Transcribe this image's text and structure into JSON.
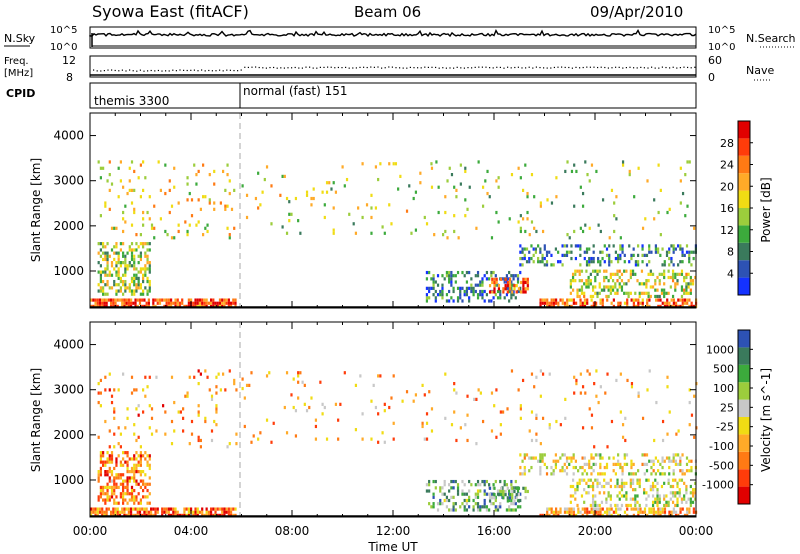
{
  "header": {
    "title": "Syowa East (fitACF)",
    "beam": "Beam 06",
    "date": "09/Apr/2010"
  },
  "nsky_panel": {
    "left_label": "N.Sky",
    "left_ticks": [
      "10^5",
      "10^0"
    ],
    "right_label": "N.Search",
    "right_ticks": [
      "10^5",
      "10^0"
    ]
  },
  "freq_panel": {
    "left_label_1": "Freq.",
    "left_label_2": "[MHz]",
    "left_ticks": [
      "12",
      "8"
    ],
    "right_label": "Nave",
    "right_ticks": [
      "60",
      "0"
    ]
  },
  "cpid_panel": {
    "label": "CPID",
    "segments": [
      {
        "name": "themis 3300",
        "start_hour": 0,
        "end_hour": 6
      },
      {
        "name": "normal (fast) 151",
        "start_hour": 6,
        "end_hour": 24
      }
    ]
  },
  "x_axis": {
    "label": "Time UT",
    "ticks": [
      "00:00",
      "04:00",
      "08:00",
      "12:00",
      "16:00",
      "20:00",
      "00:00"
    ]
  },
  "chart_data": [
    {
      "type": "heatmap",
      "title": "",
      "xlabel": "Time UT",
      "ylabel": "Slant Range [km]",
      "xlim": [
        0,
        24
      ],
      "ylim": [
        180,
        4500
      ],
      "yticks": [
        "1000",
        "2000",
        "3000",
        "4000"
      ],
      "colorbar": {
        "label": "Power [dB]",
        "range": [
          0,
          32
        ],
        "tick_labels": [
          "4",
          "8",
          "12",
          "16",
          "20",
          "24",
          "28"
        ],
        "colors": [
          "#1432ff",
          "#2d52b4",
          "#3a7a5c",
          "#3caa3c",
          "#9ccd3c",
          "#f0dc14",
          "#ffaa28",
          "#ff7a14",
          "#ff3c0a",
          "#e10000"
        ]
      },
      "regions": [
        {
          "t0": 0.0,
          "t1": 5.8,
          "r0": 180,
          "r1": 330,
          "level": 0.82,
          "density": 0.8
        },
        {
          "t0": 0.3,
          "t1": 2.4,
          "r0": 450,
          "r1": 1600,
          "level": 0.45,
          "density": 0.5
        },
        {
          "t0": 0.3,
          "t1": 5.8,
          "r0": 1700,
          "r1": 3400,
          "level": 0.55,
          "density": 0.07
        },
        {
          "t0": 6.0,
          "t1": 13.5,
          "r0": 1800,
          "r1": 3400,
          "level": 0.5,
          "density": 0.035
        },
        {
          "t0": 13.3,
          "t1": 17.0,
          "r0": 300,
          "r1": 1000,
          "level": 0.2,
          "density": 0.4
        },
        {
          "t0": 15.8,
          "t1": 17.3,
          "r0": 500,
          "r1": 800,
          "level": 0.78,
          "density": 0.5
        },
        {
          "t0": 17.0,
          "t1": 24.0,
          "r0": 1100,
          "r1": 1550,
          "level": 0.25,
          "density": 0.3
        },
        {
          "t0": 17.8,
          "t1": 24.0,
          "r0": 180,
          "r1": 350,
          "level": 0.8,
          "density": 0.6
        },
        {
          "t0": 19.0,
          "t1": 24.0,
          "r0": 400,
          "r1": 1000,
          "level": 0.5,
          "density": 0.4
        },
        {
          "t0": 13.5,
          "t1": 24.0,
          "r0": 1700,
          "r1": 3400,
          "level": 0.45,
          "density": 0.04
        }
      ]
    },
    {
      "type": "heatmap",
      "title": "",
      "xlabel": "Time UT",
      "ylabel": "Slant Range [km]",
      "xlim": [
        0,
        24
      ],
      "ylim": [
        180,
        4500
      ],
      "yticks": [
        "1000",
        "2000",
        "3000",
        "4000"
      ],
      "colorbar": {
        "label": "Velocity [m s^-1]",
        "range": [
          -1200,
          1200
        ],
        "tick_labels": [
          "-1000",
          "-500",
          "-100",
          "-25",
          "25",
          "100",
          "500",
          "1000"
        ],
        "colors": [
          "#e10000",
          "#ff3c0a",
          "#ff7a14",
          "#ffaa28",
          "#f0dc14",
          "#c8c8c8",
          "#9ccd3c",
          "#3caa3c",
          "#3a7a5c",
          "#2d52b4"
        ]
      },
      "regions": [
        {
          "t0": 0.0,
          "t1": 5.8,
          "r0": 180,
          "r1": 330,
          "level": 0.22,
          "density": 0.8
        },
        {
          "t0": 0.3,
          "t1": 2.4,
          "r0": 450,
          "r1": 1600,
          "level": 0.28,
          "density": 0.5
        },
        {
          "t0": 0.3,
          "t1": 5.8,
          "r0": 1700,
          "r1": 3400,
          "level": 0.3,
          "density": 0.07
        },
        {
          "t0": 6.0,
          "t1": 13.5,
          "r0": 1800,
          "r1": 3400,
          "level": 0.35,
          "density": 0.035
        },
        {
          "t0": 13.3,
          "t1": 17.0,
          "r0": 300,
          "r1": 1000,
          "level": 0.72,
          "density": 0.4
        },
        {
          "t0": 15.8,
          "t1": 17.3,
          "r0": 500,
          "r1": 800,
          "level": 0.7,
          "density": 0.5
        },
        {
          "t0": 17.0,
          "t1": 24.0,
          "r0": 1100,
          "r1": 1550,
          "level": 0.5,
          "density": 0.3
        },
        {
          "t0": 17.8,
          "t1": 24.0,
          "r0": 180,
          "r1": 350,
          "level": 0.35,
          "density": 0.6
        },
        {
          "t0": 19.0,
          "t1": 24.0,
          "r0": 400,
          "r1": 1000,
          "level": 0.55,
          "density": 0.4
        },
        {
          "t0": 13.5,
          "t1": 24.0,
          "r0": 1700,
          "r1": 3400,
          "level": 0.35,
          "density": 0.04
        }
      ]
    }
  ]
}
